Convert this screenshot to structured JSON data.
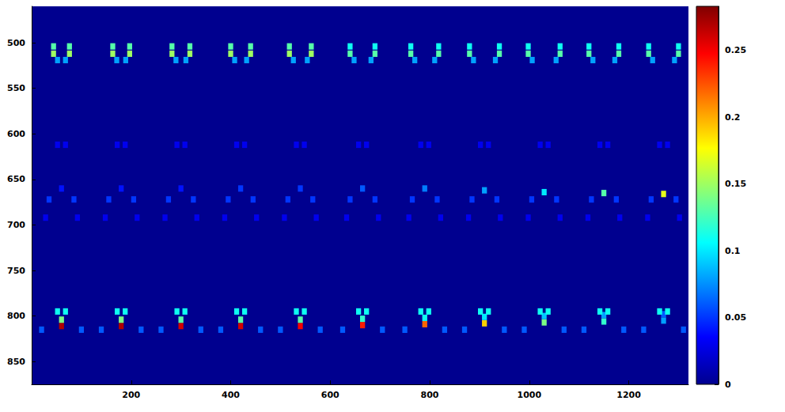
{
  "chart_data": {
    "type": "heatmap",
    "xlim": [
      0,
      1320
    ],
    "xticks": [
      200,
      400,
      600,
      800,
      1000,
      1200
    ],
    "ylim": [
      460,
      875
    ],
    "yticks": [
      500,
      550,
      600,
      650,
      700,
      750,
      800,
      850
    ],
    "grid": false,
    "cell_size": [
      10,
      7
    ],
    "colorbar": {
      "range": [
        0,
        0.283
      ],
      "ticks": [
        0,
        0.05,
        0.1,
        0.15,
        0.2,
        0.25
      ]
    },
    "cells": [
      [
        44,
        504,
        0.13
      ],
      [
        44,
        512,
        0.15
      ],
      [
        76,
        504,
        0.13
      ],
      [
        76,
        512,
        0.15
      ],
      [
        52,
        519,
        0.08
      ],
      [
        68,
        519,
        0.08
      ],
      [
        52,
        612,
        0.03
      ],
      [
        68,
        612,
        0.03
      ],
      [
        60,
        660,
        0.04
      ],
      [
        35,
        672,
        0.05
      ],
      [
        85,
        672,
        0.05
      ],
      [
        28,
        692,
        0.03
      ],
      [
        92,
        692,
        0.03
      ],
      [
        60,
        811,
        0.27
      ],
      [
        60,
        804,
        0.14
      ],
      [
        52,
        795,
        0.11
      ],
      [
        68,
        795,
        0.11
      ],
      [
        20,
        815,
        0.06
      ],
      [
        100,
        815,
        0.06
      ],
      [
        163,
        504,
        0.13
      ],
      [
        163,
        512,
        0.15
      ],
      [
        197,
        504,
        0.13
      ],
      [
        197,
        512,
        0.15
      ],
      [
        171,
        519,
        0.08
      ],
      [
        189,
        519,
        0.08
      ],
      [
        172,
        612,
        0.03
      ],
      [
        188,
        612,
        0.03
      ],
      [
        180,
        660,
        0.04
      ],
      [
        155,
        672,
        0.05
      ],
      [
        205,
        672,
        0.05
      ],
      [
        148,
        692,
        0.03
      ],
      [
        212,
        692,
        0.03
      ],
      [
        180,
        811,
        0.27
      ],
      [
        180,
        804,
        0.14
      ],
      [
        172,
        795,
        0.11
      ],
      [
        188,
        795,
        0.11
      ],
      [
        140,
        815,
        0.06
      ],
      [
        220,
        815,
        0.06
      ],
      [
        282,
        504,
        0.13
      ],
      [
        282,
        512,
        0.15
      ],
      [
        318,
        504,
        0.13
      ],
      [
        318,
        512,
        0.15
      ],
      [
        290,
        519,
        0.08
      ],
      [
        310,
        519,
        0.08
      ],
      [
        292,
        612,
        0.03
      ],
      [
        308,
        612,
        0.03
      ],
      [
        300,
        660,
        0.04
      ],
      [
        275,
        672,
        0.05
      ],
      [
        325,
        672,
        0.05
      ],
      [
        268,
        692,
        0.03
      ],
      [
        332,
        692,
        0.03
      ],
      [
        300,
        811,
        0.26
      ],
      [
        300,
        804,
        0.13
      ],
      [
        292,
        795,
        0.11
      ],
      [
        308,
        795,
        0.11
      ],
      [
        260,
        815,
        0.06
      ],
      [
        340,
        815,
        0.06
      ],
      [
        400,
        504,
        0.13
      ],
      [
        400,
        512,
        0.15
      ],
      [
        440,
        504,
        0.13
      ],
      [
        440,
        512,
        0.15
      ],
      [
        408,
        519,
        0.08
      ],
      [
        432,
        519,
        0.08
      ],
      [
        412,
        612,
        0.03
      ],
      [
        428,
        612,
        0.03
      ],
      [
        420,
        660,
        0.05
      ],
      [
        395,
        672,
        0.05
      ],
      [
        445,
        672,
        0.05
      ],
      [
        388,
        692,
        0.03
      ],
      [
        452,
        692,
        0.03
      ],
      [
        420,
        811,
        0.26
      ],
      [
        420,
        804,
        0.13
      ],
      [
        412,
        795,
        0.11
      ],
      [
        428,
        795,
        0.11
      ],
      [
        380,
        815,
        0.06
      ],
      [
        460,
        815,
        0.06
      ],
      [
        518,
        504,
        0.13
      ],
      [
        518,
        512,
        0.15
      ],
      [
        562,
        504,
        0.13
      ],
      [
        562,
        512,
        0.15
      ],
      [
        526,
        519,
        0.08
      ],
      [
        554,
        519,
        0.08
      ],
      [
        532,
        612,
        0.03
      ],
      [
        548,
        612,
        0.03
      ],
      [
        540,
        660,
        0.05
      ],
      [
        515,
        672,
        0.05
      ],
      [
        565,
        672,
        0.05
      ],
      [
        508,
        692,
        0.03
      ],
      [
        572,
        692,
        0.03
      ],
      [
        540,
        811,
        0.25
      ],
      [
        540,
        804,
        0.13
      ],
      [
        532,
        795,
        0.11
      ],
      [
        548,
        795,
        0.11
      ],
      [
        500,
        815,
        0.06
      ],
      [
        580,
        815,
        0.06
      ],
      [
        640,
        504,
        0.11
      ],
      [
        640,
        512,
        0.13
      ],
      [
        690,
        504,
        0.11
      ],
      [
        690,
        512,
        0.13
      ],
      [
        648,
        519,
        0.08
      ],
      [
        682,
        519,
        0.08
      ],
      [
        657,
        612,
        0.03
      ],
      [
        673,
        612,
        0.03
      ],
      [
        665,
        660,
        0.06
      ],
      [
        640,
        672,
        0.05
      ],
      [
        690,
        672,
        0.05
      ],
      [
        633,
        692,
        0.03
      ],
      [
        697,
        692,
        0.03
      ],
      [
        665,
        810,
        0.24
      ],
      [
        665,
        803,
        0.12
      ],
      [
        657,
        795,
        0.11
      ],
      [
        673,
        795,
        0.11
      ],
      [
        625,
        815,
        0.06
      ],
      [
        705,
        815,
        0.06
      ],
      [
        762,
        504,
        0.11
      ],
      [
        762,
        512,
        0.13
      ],
      [
        818,
        504,
        0.11
      ],
      [
        818,
        512,
        0.13
      ],
      [
        770,
        519,
        0.08
      ],
      [
        810,
        519,
        0.08
      ],
      [
        782,
        612,
        0.03
      ],
      [
        798,
        612,
        0.03
      ],
      [
        790,
        660,
        0.07
      ],
      [
        765,
        672,
        0.05
      ],
      [
        815,
        672,
        0.05
      ],
      [
        758,
        692,
        0.03
      ],
      [
        822,
        692,
        0.03
      ],
      [
        790,
        809,
        0.22
      ],
      [
        790,
        802,
        0.11
      ],
      [
        782,
        795,
        0.11
      ],
      [
        798,
        795,
        0.11
      ],
      [
        750,
        815,
        0.06
      ],
      [
        830,
        815,
        0.06
      ],
      [
        880,
        504,
        0.11
      ],
      [
        880,
        512,
        0.13
      ],
      [
        940,
        504,
        0.11
      ],
      [
        940,
        512,
        0.13
      ],
      [
        888,
        519,
        0.08
      ],
      [
        932,
        519,
        0.08
      ],
      [
        902,
        612,
        0.03
      ],
      [
        918,
        612,
        0.03
      ],
      [
        910,
        662,
        0.08
      ],
      [
        885,
        672,
        0.05
      ],
      [
        935,
        672,
        0.05
      ],
      [
        878,
        692,
        0.03
      ],
      [
        942,
        692,
        0.03
      ],
      [
        910,
        808,
        0.19
      ],
      [
        910,
        801,
        0.1
      ],
      [
        902,
        795,
        0.11
      ],
      [
        918,
        795,
        0.11
      ],
      [
        870,
        815,
        0.06
      ],
      [
        950,
        815,
        0.06
      ],
      [
        998,
        504,
        0.11
      ],
      [
        998,
        512,
        0.13
      ],
      [
        1062,
        504,
        0.11
      ],
      [
        1062,
        512,
        0.13
      ],
      [
        1006,
        519,
        0.08
      ],
      [
        1054,
        519,
        0.08
      ],
      [
        1022,
        612,
        0.03
      ],
      [
        1038,
        612,
        0.03
      ],
      [
        1030,
        664,
        0.1
      ],
      [
        1005,
        672,
        0.05
      ],
      [
        1055,
        672,
        0.05
      ],
      [
        998,
        692,
        0.03
      ],
      [
        1062,
        692,
        0.03
      ],
      [
        1030,
        807,
        0.14
      ],
      [
        1030,
        800,
        0.09
      ],
      [
        1022,
        795,
        0.11
      ],
      [
        1038,
        795,
        0.11
      ],
      [
        990,
        815,
        0.06
      ],
      [
        1070,
        815,
        0.06
      ],
      [
        1120,
        504,
        0.11
      ],
      [
        1120,
        512,
        0.13
      ],
      [
        1180,
        504,
        0.11
      ],
      [
        1180,
        512,
        0.13
      ],
      [
        1128,
        519,
        0.08
      ],
      [
        1172,
        519,
        0.08
      ],
      [
        1142,
        612,
        0.03
      ],
      [
        1158,
        612,
        0.03
      ],
      [
        1150,
        665,
        0.13
      ],
      [
        1125,
        672,
        0.05
      ],
      [
        1175,
        672,
        0.05
      ],
      [
        1118,
        692,
        0.03
      ],
      [
        1182,
        692,
        0.03
      ],
      [
        1150,
        806,
        0.12
      ],
      [
        1150,
        799,
        0.08
      ],
      [
        1142,
        795,
        0.11
      ],
      [
        1158,
        795,
        0.11
      ],
      [
        1110,
        815,
        0.06
      ],
      [
        1190,
        815,
        0.06
      ],
      [
        1240,
        504,
        0.11
      ],
      [
        1240,
        512,
        0.13
      ],
      [
        1300,
        504,
        0.11
      ],
      [
        1300,
        512,
        0.13
      ],
      [
        1248,
        519,
        0.08
      ],
      [
        1292,
        519,
        0.08
      ],
      [
        1262,
        612,
        0.03
      ],
      [
        1278,
        612,
        0.03
      ],
      [
        1270,
        666,
        0.17
      ],
      [
        1245,
        672,
        0.05
      ],
      [
        1295,
        672,
        0.05
      ],
      [
        1238,
        692,
        0.03
      ],
      [
        1302,
        692,
        0.03
      ],
      [
        1270,
        805,
        0.08
      ],
      [
        1270,
        798,
        0.06
      ],
      [
        1262,
        795,
        0.11
      ],
      [
        1278,
        795,
        0.11
      ],
      [
        1230,
        815,
        0.06
      ],
      [
        1310,
        815,
        0.06
      ]
    ]
  }
}
